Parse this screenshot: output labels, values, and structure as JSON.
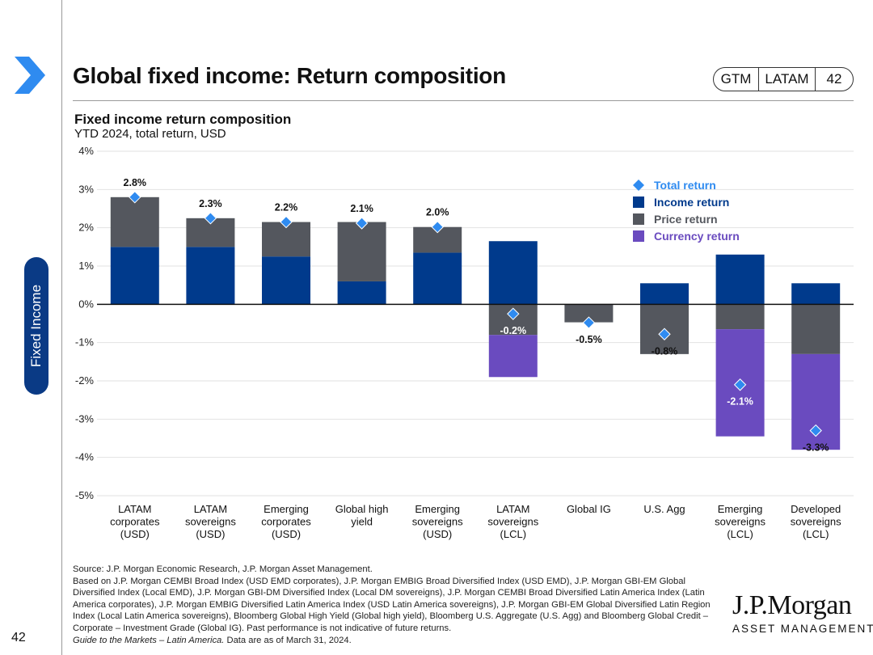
{
  "header": {
    "title": "Global fixed income: Return composition",
    "badge": [
      "GTM",
      "LATAM",
      "42"
    ]
  },
  "sidebar": {
    "tab_label": "Fixed Income",
    "page_number": "42"
  },
  "colors": {
    "income": "#003a8c",
    "price": "#54575e",
    "currency": "#6a4bbf",
    "total": "#2f8bf0",
    "brand_navy": "#0a3a85"
  },
  "chart_data": {
    "type": "bar",
    "stacked": true,
    "title": "Fixed income return composition",
    "subtitle": "YTD 2024, total return, USD",
    "ylim": [
      -5,
      4
    ],
    "yticks": [
      4,
      3,
      2,
      1,
      0,
      -1,
      -2,
      -3,
      -4,
      -5
    ],
    "ytick_labels": [
      "4%",
      "3%",
      "2%",
      "1%",
      "0%",
      "-1%",
      "-2%",
      "-3%",
      "-4%",
      "-5%"
    ],
    "grid": true,
    "legend_position": "top-right",
    "categories": [
      [
        "LATAM",
        "corporates",
        "(USD)"
      ],
      [
        "LATAM",
        "sovereigns",
        "(USD)"
      ],
      [
        "Emerging",
        "corporates",
        "(USD)"
      ],
      [
        "Global high",
        "yield"
      ],
      [
        "Emerging",
        "sovereigns",
        "(USD)"
      ],
      [
        "LATAM",
        "sovereigns",
        "(LCL)"
      ],
      [
        "Global IG"
      ],
      [
        "U.S. Agg"
      ],
      [
        "Emerging",
        "sovereigns",
        "(LCL)"
      ],
      [
        "Developed",
        "sovereigns",
        "(LCL)"
      ]
    ],
    "series": [
      {
        "name": "Income return",
        "key": "income",
        "values": [
          1.5,
          1.5,
          1.25,
          0.6,
          1.35,
          1.65,
          0.0,
          0.55,
          1.3,
          0.55
        ]
      },
      {
        "name": "Price return",
        "key": "price",
        "values": [
          1.3,
          0.75,
          0.9,
          1.55,
          0.67,
          -0.8,
          -0.47,
          -1.3,
          -0.65,
          -1.3
        ]
      },
      {
        "name": "Currency return",
        "key": "currency",
        "values": [
          0,
          0,
          0,
          0,
          0,
          -1.1,
          0,
          0,
          -2.8,
          -2.5
        ]
      }
    ],
    "total_return": {
      "name": "Total return",
      "values": [
        2.8,
        2.25,
        2.15,
        2.12,
        2.02,
        -0.25,
        -0.48,
        -0.78,
        -2.1,
        -3.3
      ],
      "labels": [
        "2.8%",
        "2.3%",
        "2.2%",
        "2.1%",
        "2.0%",
        "-0.2%",
        "-0.5%",
        "-0.8%",
        "-2.1%",
        "-3.3%"
      ],
      "label_positions": [
        "above",
        "above",
        "above",
        "above",
        "above",
        "below",
        "below",
        "below",
        "below",
        "below"
      ]
    },
    "legend": [
      {
        "name": "Total return",
        "key": "total"
      },
      {
        "name": "Income return",
        "key": "income"
      },
      {
        "name": "Price return",
        "key": "price"
      },
      {
        "name": "Currency return",
        "key": "currency"
      }
    ]
  },
  "footnote": {
    "line1": "Source: J.P. Morgan Economic Research, J.P. Morgan Asset Management.",
    "body": "Based on J.P. Morgan CEMBI Broad Index (USD EMD corporates), J.P. Morgan EMBIG Broad Diversified Index (USD EMD), J.P. Morgan GBI-EM Global Diversified Index (Local EMD), J.P. Morgan GBI-DM Diversified Index (Local DM sovereigns), J.P. Morgan CEMBI Broad Diversified Latin America Index (Latin America corporates), J.P. Morgan EMBIG Diversified Latin America Index (USD Latin America sovereigns), J.P. Morgan GBI-EM Global Diversified Latin Region Index (Local Latin America sovereigns), Bloomberg Global High Yield (Global high yield), Bloomberg U.S. Aggregate (U.S. Agg) and Bloomberg Global Credit – Corporate – Investment Grade (Global IG). Past performance is not indicative of future returns.",
    "guide_italic": "Guide to the Markets – Latin America.",
    "guide_rest": " Data are as of March 31, 2024."
  },
  "logo": {
    "main": "J.P.Morgan",
    "sub": "ASSET MANAGEMENT"
  }
}
